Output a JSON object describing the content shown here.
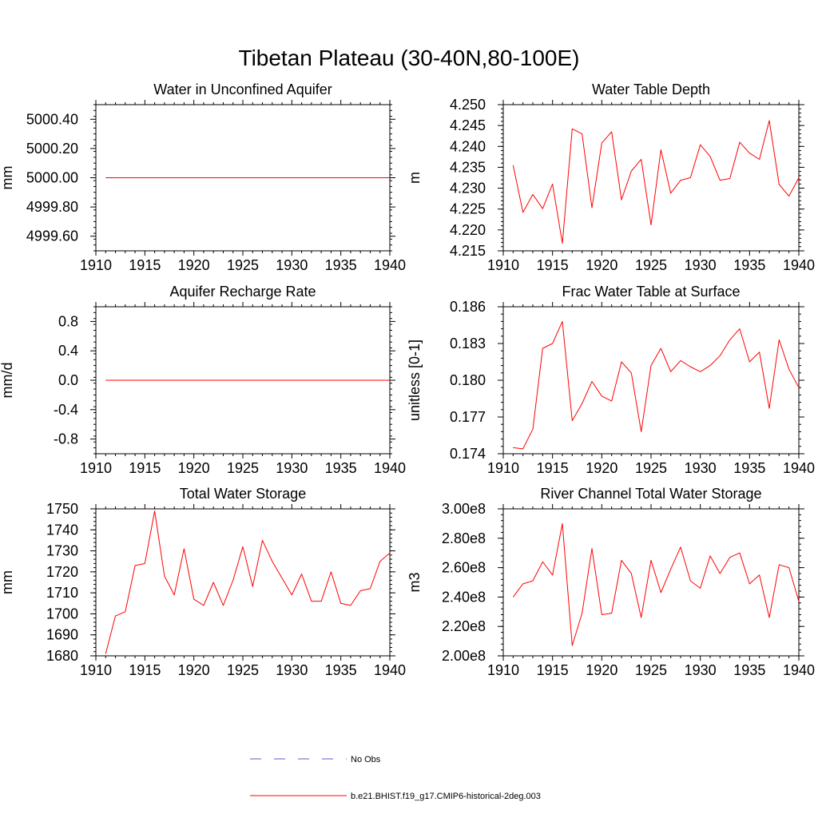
{
  "figure": {
    "title": "Tibetan Plateau (30-40N,80-100E)"
  },
  "legend": [
    {
      "name": "No Obs",
      "color": "#5b5bd6",
      "dash": "dashed"
    },
    {
      "name": "b.e21.BHIST.f19_g17.CMIP6-historical-2deg.003",
      "color": "#ff0000",
      "dash": "solid"
    }
  ],
  "chart_data": [
    {
      "type": "line",
      "title": "Water in Unconfined Aquifer",
      "ylabel": "mm",
      "xlim": [
        1910,
        1940
      ],
      "ylim": [
        4999.5,
        5000.5
      ],
      "xticks": [
        1910,
        1915,
        1920,
        1925,
        1930,
        1935,
        1940
      ],
      "yticks": [
        4999.6,
        4999.8,
        5000.0,
        5000.2,
        5000.4
      ],
      "ytick_labels": [
        "4999.60",
        "4999.80",
        "5000.00",
        "5000.20",
        "5000.40"
      ],
      "yminor_step": 0.04,
      "x": [
        1911,
        1912,
        1913,
        1914,
        1915,
        1916,
        1917,
        1918,
        1919,
        1920,
        1921,
        1922,
        1923,
        1924,
        1925,
        1926,
        1927,
        1928,
        1929,
        1930,
        1931,
        1932,
        1933,
        1934,
        1935,
        1936,
        1937,
        1938,
        1939,
        1940
      ],
      "series": [
        {
          "name": "b.e21.BHIST.f19_g17.CMIP6-historical-2deg.003",
          "color": "#ff0000",
          "values": [
            5000,
            5000,
            5000,
            5000,
            5000,
            5000,
            5000,
            5000,
            5000,
            5000,
            5000,
            5000,
            5000,
            5000,
            5000,
            5000,
            5000,
            5000,
            5000,
            5000,
            5000,
            5000,
            5000,
            5000,
            5000,
            5000,
            5000,
            5000,
            5000,
            5000
          ]
        }
      ]
    },
    {
      "type": "line",
      "title": "Water Table Depth",
      "ylabel": "m",
      "xlim": [
        1910,
        1940
      ],
      "ylim": [
        4.215,
        4.25
      ],
      "xticks": [
        1910,
        1915,
        1920,
        1925,
        1930,
        1935,
        1940
      ],
      "yticks": [
        4.215,
        4.22,
        4.225,
        4.23,
        4.235,
        4.24,
        4.245,
        4.25
      ],
      "ytick_labels": [
        "4.215",
        "4.220",
        "4.225",
        "4.230",
        "4.235",
        "4.240",
        "4.245",
        "4.250"
      ],
      "yminor_step": 0.001,
      "x": [
        1911,
        1912,
        1913,
        1914,
        1915,
        1916,
        1917,
        1918,
        1919,
        1920,
        1921,
        1922,
        1923,
        1924,
        1925,
        1926,
        1927,
        1928,
        1929,
        1930,
        1931,
        1932,
        1933,
        1934,
        1935,
        1936,
        1937,
        1938,
        1939,
        1940
      ],
      "series": [
        {
          "name": "b.e21.BHIST.f19_g17.CMIP6-historical-2deg.003",
          "color": "#ff0000",
          "values": [
            4.2355,
            4.2242,
            4.2285,
            4.2251,
            4.231,
            4.2168,
            4.2442,
            4.243,
            4.2253,
            4.2408,
            4.2435,
            4.2272,
            4.2341,
            4.2369,
            4.2212,
            4.2392,
            4.2288,
            4.2319,
            4.2325,
            4.2404,
            4.2376,
            4.2319,
            4.2323,
            4.241,
            4.2384,
            4.2369,
            4.2462,
            4.2309,
            4.2281,
            4.2325
          ]
        }
      ]
    },
    {
      "type": "line",
      "title": "Aquifer Recharge Rate",
      "ylabel": "mm/d",
      "xlim": [
        1910,
        1940
      ],
      "ylim": [
        -1.0,
        1.0
      ],
      "xticks": [
        1910,
        1915,
        1920,
        1925,
        1930,
        1935,
        1940
      ],
      "yticks": [
        -0.8,
        -0.4,
        0.0,
        0.4,
        0.8
      ],
      "ytick_labels": [
        "-0.8",
        "-0.4",
        "0.0",
        "0.4",
        "0.8"
      ],
      "yminor_step": 0.08,
      "x": [
        1911,
        1912,
        1913,
        1914,
        1915,
        1916,
        1917,
        1918,
        1919,
        1920,
        1921,
        1922,
        1923,
        1924,
        1925,
        1926,
        1927,
        1928,
        1929,
        1930,
        1931,
        1932,
        1933,
        1934,
        1935,
        1936,
        1937,
        1938,
        1939,
        1940
      ],
      "series": [
        {
          "name": "b.e21.BHIST.f19_g17.CMIP6-historical-2deg.003",
          "color": "#ff0000",
          "values": [
            0,
            0,
            0,
            0,
            0,
            0,
            0,
            0,
            0,
            0,
            0,
            0,
            0,
            0,
            0,
            0,
            0,
            0,
            0,
            0,
            0,
            0,
            0,
            0,
            0,
            0,
            0,
            0,
            0,
            0
          ]
        }
      ]
    },
    {
      "type": "line",
      "title": "Frac Water Table at Surface",
      "ylabel": "unitless [0-1]",
      "xlim": [
        1910,
        1940
      ],
      "ylim": [
        0.174,
        0.186
      ],
      "xticks": [
        1910,
        1915,
        1920,
        1925,
        1930,
        1935,
        1940
      ],
      "yticks": [
        0.174,
        0.177,
        0.18,
        0.183,
        0.186
      ],
      "ytick_labels": [
        "0.174",
        "0.177",
        "0.180",
        "0.183",
        "0.186"
      ],
      "yminor_step": 0.0006,
      "x": [
        1911,
        1912,
        1913,
        1914,
        1915,
        1916,
        1917,
        1918,
        1919,
        1920,
        1921,
        1922,
        1923,
        1924,
        1925,
        1926,
        1927,
        1928,
        1929,
        1930,
        1931,
        1932,
        1933,
        1934,
        1935,
        1936,
        1937,
        1938,
        1939,
        1940
      ],
      "series": [
        {
          "name": "b.e21.BHIST.f19_g17.CMIP6-historical-2deg.003",
          "color": "#ff0000",
          "values": [
            0.1745,
            0.1744,
            0.176,
            0.1826,
            0.183,
            0.1848,
            0.1767,
            0.1781,
            0.1799,
            0.1787,
            0.1783,
            0.1815,
            0.1806,
            0.1758,
            0.1812,
            0.1826,
            0.1807,
            0.1816,
            0.1811,
            0.1807,
            0.1812,
            0.182,
            0.1833,
            0.1842,
            0.1815,
            0.1823,
            0.1777,
            0.1833,
            0.1809,
            0.1794
          ]
        }
      ]
    },
    {
      "type": "line",
      "title": "Total Water Storage",
      "ylabel": "mm",
      "xlim": [
        1910,
        1940
      ],
      "ylim": [
        1680,
        1750
      ],
      "xticks": [
        1910,
        1915,
        1920,
        1925,
        1930,
        1935,
        1940
      ],
      "yticks": [
        1680,
        1690,
        1700,
        1710,
        1720,
        1730,
        1740,
        1750
      ],
      "ytick_labels": [
        "1680",
        "1690",
        "1700",
        "1710",
        "1720",
        "1730",
        "1740",
        "1750"
      ],
      "yminor_step": 2,
      "x": [
        1911,
        1912,
        1913,
        1914,
        1915,
        1916,
        1917,
        1918,
        1919,
        1920,
        1921,
        1922,
        1923,
        1924,
        1925,
        1926,
        1927,
        1928,
        1929,
        1930,
        1931,
        1932,
        1933,
        1934,
        1935,
        1936,
        1937,
        1938,
        1939,
        1940
      ],
      "series": [
        {
          "name": "b.e21.BHIST.f19_g17.CMIP6-historical-2deg.003",
          "color": "#ff0000",
          "values": [
            1681,
            1699,
            1701,
            1723,
            1724,
            1749,
            1718,
            1709,
            1731,
            1707,
            1704,
            1715,
            1704,
            1716,
            1732,
            1713,
            1735,
            1725,
            1717,
            1709,
            1719,
            1706,
            1706,
            1720,
            1705,
            1704,
            1711,
            1712,
            1725,
            1729
          ]
        }
      ]
    },
    {
      "type": "line",
      "title": "River Channel Total Water Storage",
      "ylabel": "m3",
      "xlim": [
        1910,
        1940
      ],
      "ylim": [
        200000000,
        300000000
      ],
      "xticks": [
        1910,
        1915,
        1920,
        1925,
        1930,
        1935,
        1940
      ],
      "yticks": [
        200000000,
        220000000,
        240000000,
        260000000,
        280000000,
        300000000
      ],
      "ytick_labels": [
        "2.00e8",
        "2.20e8",
        "2.40e8",
        "2.60e8",
        "2.80e8",
        "3.00e8"
      ],
      "yminor_step": 4000000,
      "x": [
        1911,
        1912,
        1913,
        1914,
        1915,
        1916,
        1917,
        1918,
        1919,
        1920,
        1921,
        1922,
        1923,
        1924,
        1925,
        1926,
        1927,
        1928,
        1929,
        1930,
        1931,
        1932,
        1933,
        1934,
        1935,
        1936,
        1937,
        1938,
        1939,
        1940
      ],
      "series": [
        {
          "name": "b.e21.BHIST.f19_g17.CMIP6-historical-2deg.003",
          "color": "#ff0000",
          "values": [
            240000000,
            249000000,
            251000000,
            264000000,
            255000000,
            290000000,
            207000000,
            229000000,
            273000000,
            228000000,
            229000000,
            265000000,
            256000000,
            226000000,
            265000000,
            243000000,
            259000000,
            274000000,
            251000000,
            246000000,
            268000000,
            256000000,
            267000000,
            270000000,
            249000000,
            255000000,
            226000000,
            262000000,
            260000000,
            237000000
          ]
        }
      ]
    }
  ]
}
